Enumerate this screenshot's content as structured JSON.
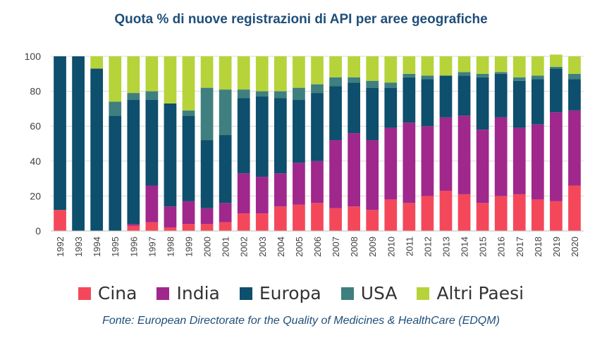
{
  "title": "Quota % di nuove registrazioni di API per aree geografiche",
  "source": "Fonte: European Directorate for the Quality of Medicines & HealthCare (EDQM)",
  "chart_data": {
    "type": "bar",
    "stacked": true,
    "title": "Quota % di nuove registrazioni di API per aree geografiche",
    "xlabel": "",
    "ylabel": "",
    "ylim": [
      0,
      100
    ],
    "yticks": [
      0,
      20,
      40,
      60,
      80,
      100
    ],
    "grid": true,
    "legend_position": "bottom",
    "categories": [
      "1992",
      "1993",
      "1994",
      "1995",
      "1996",
      "1997",
      "1998",
      "1999",
      "2000",
      "2001",
      "2002",
      "2003",
      "2004",
      "2005",
      "2006",
      "2007",
      "2008",
      "2009",
      "2010",
      "2011",
      "2012",
      "2013",
      "2014",
      "2015",
      "2016",
      "2017",
      "2018",
      "2019",
      "2020"
    ],
    "series": [
      {
        "name": "Cina",
        "color": "#f4485a",
        "values": [
          12,
          0,
          0,
          0,
          3,
          5,
          2,
          4,
          4,
          5,
          10,
          10,
          14,
          15,
          16,
          13,
          14,
          12,
          18,
          16,
          20,
          23,
          21,
          16,
          20,
          21,
          18,
          17,
          26
        ]
      },
      {
        "name": "India",
        "color": "#a0278c",
        "values": [
          0,
          0,
          0,
          0,
          1,
          21,
          12,
          13,
          9,
          11,
          23,
          21,
          19,
          24,
          24,
          39,
          42,
          40,
          41,
          46,
          40,
          42,
          45,
          42,
          45,
          38,
          43,
          51,
          43
        ]
      },
      {
        "name": "Europa",
        "color": "#0d4f6c",
        "values": [
          88,
          100,
          93,
          66,
          71,
          49,
          59,
          49,
          39,
          39,
          43,
          46,
          43,
          36,
          39,
          31,
          29,
          30,
          23,
          26,
          27,
          24,
          23,
          30,
          25,
          27,
          26,
          25,
          18
        ]
      },
      {
        "name": "USA",
        "color": "#3f7f7f",
        "values": [
          0,
          0,
          0,
          8,
          4,
          5,
          0,
          3,
          30,
          26,
          5,
          3,
          4,
          7,
          5,
          5,
          3,
          4,
          3,
          2,
          2,
          0,
          2,
          2,
          1,
          2,
          2,
          1,
          3
        ]
      },
      {
        "name": "Altri Paesi",
        "color": "#b6d33a",
        "values": [
          0,
          0,
          7,
          26,
          21,
          20,
          27,
          31,
          18,
          19,
          19,
          20,
          20,
          18,
          16,
          12,
          12,
          14,
          15,
          10,
          11,
          11,
          9,
          10,
          9,
          12,
          11,
          7,
          10
        ]
      }
    ]
  }
}
